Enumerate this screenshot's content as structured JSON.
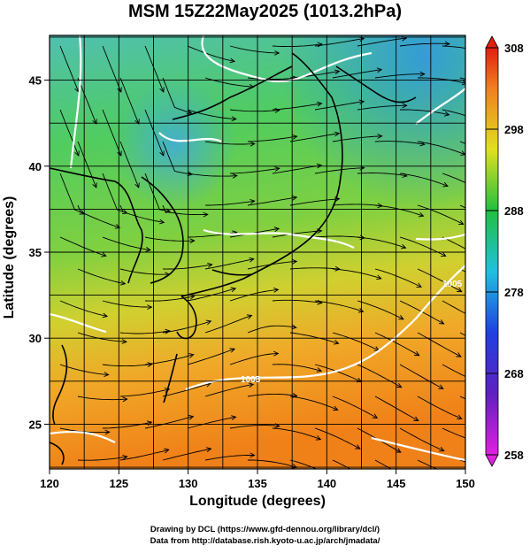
{
  "title": "MSM 15Z22May2025 (1013.2hPa)",
  "xlabel": "Longitude (degrees)",
  "ylabel": "Latitude  (degrees)",
  "x_ticks": [
    "120",
    "125",
    "130",
    "135",
    "140",
    "145",
    "150"
  ],
  "y_ticks": [
    "25",
    "30",
    "35",
    "40",
    "45"
  ],
  "colorbar_ticks": [
    "308",
    "298",
    "288",
    "278",
    "268",
    "258"
  ],
  "contour_labels": [
    "1005",
    "1005"
  ],
  "credit_line1": "Drawing by DCL (https://www.gfd-dennou.org/library/dcl/)",
  "credit_line2": "Data from http://database.rish.kyoto-u.ac.jp/arch/jmadata/",
  "colors": {
    "warm": "#f0a020",
    "mid": "#40c040",
    "cool": "#40c0c0",
    "cold": "#2080e0",
    "coast": "#000000",
    "isobar": "#ffffff"
  },
  "chart_data": {
    "type": "heatmap",
    "title": "MSM 15Z22May2025 (1013.2hPa)",
    "xlabel": "Longitude (degrees)",
    "ylabel": "Latitude  (degrees)",
    "xlim": [
      120,
      150
    ],
    "ylim": [
      22.4,
      47.6
    ],
    "x_ticks": [
      120,
      125,
      130,
      135,
      140,
      145,
      150
    ],
    "y_ticks": [
      25,
      30,
      35,
      40,
      45
    ],
    "colorbar": {
      "min": 258,
      "max": 308,
      "ticks": [
        308,
        298,
        288,
        278,
        268,
        258
      ]
    },
    "grid": true,
    "overlays": [
      "streamlines",
      "isobars",
      "coastlines"
    ]
  }
}
